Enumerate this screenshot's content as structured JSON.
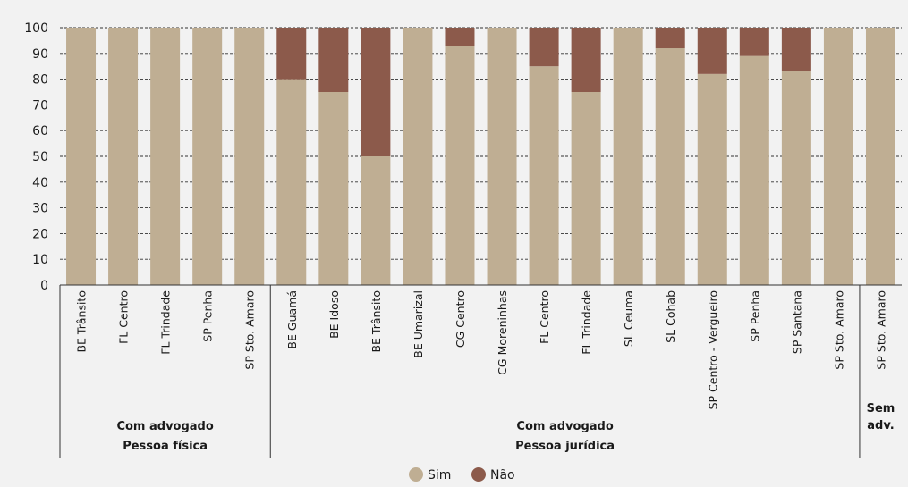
{
  "chart_data": {
    "type": "bar",
    "stacked": true,
    "ylim": [
      0,
      100
    ],
    "yticks": [
      0,
      10,
      20,
      30,
      40,
      50,
      60,
      70,
      80,
      90,
      100
    ],
    "grid": "horizontal-dashed",
    "legend_position": "bottom-center",
    "categories": [
      "BE Trânsito",
      "FL Centro",
      "FL Trindade",
      "SP Penha",
      "SP Sto. Amaro",
      "BE Guamá",
      "BE Idoso",
      "BE Trânsito",
      "BE Umarizal",
      "CG Centro",
      "CG Moreninhas",
      "FL Centro",
      "FL Trindade",
      "SL Ceuma",
      "SL Cohab",
      "SP Centro - Vergueiro",
      "SP Penha",
      "SP Santana",
      "SP Sto. Amaro",
      "SP Sto. Amaro"
    ],
    "series": [
      {
        "name": "Sim",
        "color": "#bfae93",
        "values": [
          100,
          100,
          100,
          100,
          100,
          80,
          75,
          50,
          100,
          93,
          100,
          85,
          75,
          100,
          92,
          82,
          89,
          83,
          100,
          100
        ]
      },
      {
        "name": "Não",
        "color": "#8c5a4b",
        "values": [
          0,
          0,
          0,
          0,
          0,
          20,
          25,
          50,
          0,
          7,
          0,
          15,
          25,
          0,
          8,
          18,
          11,
          17,
          0,
          0
        ]
      }
    ],
    "groups": [
      {
        "line1": "Com advogado",
        "line2": "Pessoa física",
        "start": 0,
        "end": 4
      },
      {
        "line1": "Com advogado",
        "line2": "Pessoa jurídica",
        "start": 5,
        "end": 18
      },
      {
        "line1": "Sem",
        "line2": "adv.",
        "start": 19,
        "end": 19
      }
    ]
  }
}
